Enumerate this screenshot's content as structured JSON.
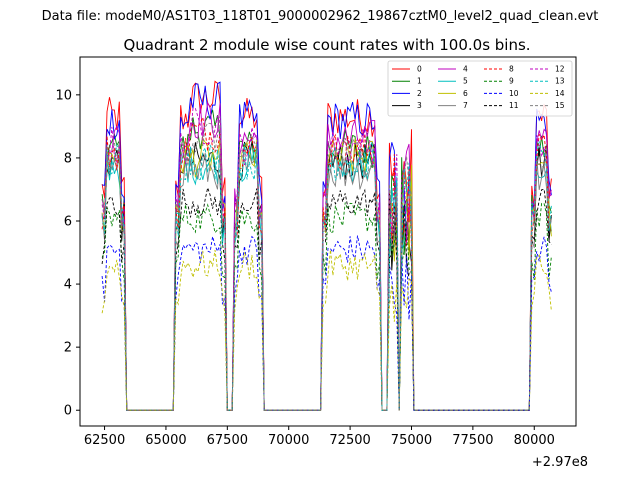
{
  "chart_data": {
    "type": "line",
    "suptitle": "Data file: modeM0/AS1T03_118T01_9000002962_19867cztM0_level2_quad_clean.evt",
    "title": "Quadrant 2 module wise count rates with 100.0s bins.",
    "xlabel": "",
    "ylabel": "",
    "x_offset_label": "+2.97e8",
    "xlim": [
      61500,
      81700
    ],
    "ylim": [
      -0.5,
      11.2
    ],
    "xticks": [
      62500,
      65000,
      67500,
      70000,
      72500,
      75000,
      77500,
      80000
    ],
    "xtick_labels": [
      "62500",
      "65000",
      "67500",
      "70000",
      "72500",
      "75000",
      "77500",
      "80000"
    ],
    "yticks": [
      0,
      2,
      4,
      6,
      8,
      10
    ],
    "ytick_labels": [
      "0",
      "2",
      "4",
      "6",
      "8",
      "10"
    ],
    "on_intervals": [
      [
        62400,
        63300
      ],
      [
        65400,
        67400
      ],
      [
        67800,
        68900
      ],
      [
        71400,
        73700
      ],
      [
        74100,
        74400
      ],
      [
        74600,
        75000
      ],
      [
        79900,
        80700
      ]
    ],
    "legend_loc": "upper right",
    "series": [
      {
        "name": "0",
        "color": "#ff0000",
        "style": "solid",
        "base": 9.3
      },
      {
        "name": "1",
        "color": "#008000",
        "style": "solid",
        "base": 8.3
      },
      {
        "name": "2",
        "color": "#0000ff",
        "style": "solid",
        "base": 9.2
      },
      {
        "name": "3",
        "color": "#000000",
        "style": "solid",
        "base": 7.9
      },
      {
        "name": "4",
        "color": "#bf00bf",
        "style": "solid",
        "base": 8.6
      },
      {
        "name": "5",
        "color": "#00bfbf",
        "style": "solid",
        "base": 7.8
      },
      {
        "name": "6",
        "color": "#bfbf00",
        "style": "solid",
        "base": 8.0
      },
      {
        "name": "7",
        "color": "#808080",
        "style": "solid",
        "base": 7.6
      },
      {
        "name": "8",
        "color": "#ff0000",
        "style": "dashed",
        "base": 8.2
      },
      {
        "name": "9",
        "color": "#008000",
        "style": "dashed",
        "base": 6.1
      },
      {
        "name": "10",
        "color": "#0000ff",
        "style": "dashed",
        "base": 5.1
      },
      {
        "name": "11",
        "color": "#000000",
        "style": "dashed",
        "base": 6.6
      },
      {
        "name": "12",
        "color": "#bf00bf",
        "style": "dashed",
        "base": 8.4
      },
      {
        "name": "13",
        "color": "#00bfbf",
        "style": "dashed",
        "base": 7.9
      },
      {
        "name": "14",
        "color": "#bfbf00",
        "style": "dashed",
        "base": 4.6
      },
      {
        "name": "15",
        "color": "#808080",
        "style": "dashed",
        "base": 8.1
      }
    ]
  }
}
